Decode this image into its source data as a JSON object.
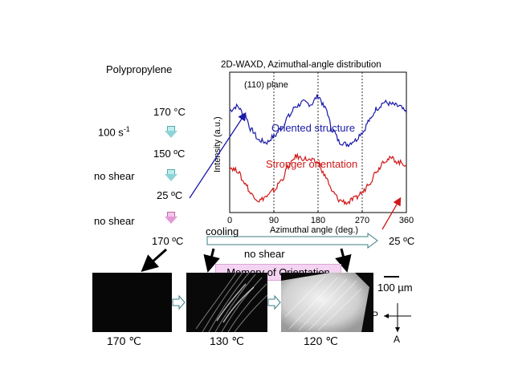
{
  "material_title": "Polypropylene",
  "steps": {
    "t1": "170 °C",
    "shear_rate": "100 s",
    "shear_rate_sup": "-1",
    "t2": "150 ºC",
    "no_shear_1": "no shear",
    "t3": "25 ºC",
    "no_shear_2": "no shear",
    "t4": "170 ºC"
  },
  "cooling_label": "cooling",
  "no_shear_label": "no shear",
  "end_temp": "25 ºC",
  "memory_label": "Memory of Orientation",
  "micrographs": [
    {
      "temp": "170 ℃"
    },
    {
      "temp": "130 ℃"
    },
    {
      "temp": "120 ℃"
    }
  ],
  "scale_label": "100 µm",
  "polarizer_labels": {
    "p": "P",
    "a": "A"
  },
  "chart_data": {
    "type": "line",
    "title": "2D-WAXD, Azimuthal-angle distribution",
    "annotation": "(110) plane",
    "xlabel": "Azimuthal angle (deg.)",
    "ylabel": "Intensity (a.u.)",
    "xlim": [
      0,
      360
    ],
    "xticks": [
      "0",
      "90",
      "180",
      "270",
      "360"
    ],
    "dashed_gridlines_x": [
      90,
      180,
      270
    ],
    "series": [
      {
        "name": "Oriented structure",
        "color": "#1a1aa8",
        "x": [
          0,
          15,
          30,
          45,
          60,
          75,
          90,
          105,
          120,
          135,
          150,
          165,
          180,
          195,
          210,
          225,
          240,
          255,
          270,
          285,
          300,
          315,
          330,
          345,
          360
        ],
        "y": [
          0.82,
          0.86,
          0.78,
          0.62,
          0.52,
          0.5,
          0.56,
          0.64,
          0.76,
          0.86,
          0.9,
          0.88,
          0.96,
          0.84,
          0.62,
          0.5,
          0.48,
          0.52,
          0.6,
          0.72,
          0.84,
          0.9,
          0.88,
          0.86,
          0.8
        ]
      },
      {
        "name": "Stronger orientation",
        "color": "#d01818",
        "x": [
          0,
          15,
          30,
          45,
          60,
          75,
          90,
          105,
          120,
          135,
          150,
          165,
          180,
          195,
          210,
          225,
          240,
          255,
          270,
          285,
          300,
          315,
          330,
          345,
          360
        ],
        "y": [
          0.25,
          0.22,
          0.1,
          -0.02,
          -0.08,
          -0.04,
          0.02,
          0.12,
          0.26,
          0.36,
          0.34,
          0.32,
          0.3,
          0.16,
          0.0,
          -0.08,
          -0.1,
          -0.06,
          0.0,
          0.1,
          0.22,
          0.32,
          0.34,
          0.3,
          0.28
        ]
      }
    ]
  }
}
